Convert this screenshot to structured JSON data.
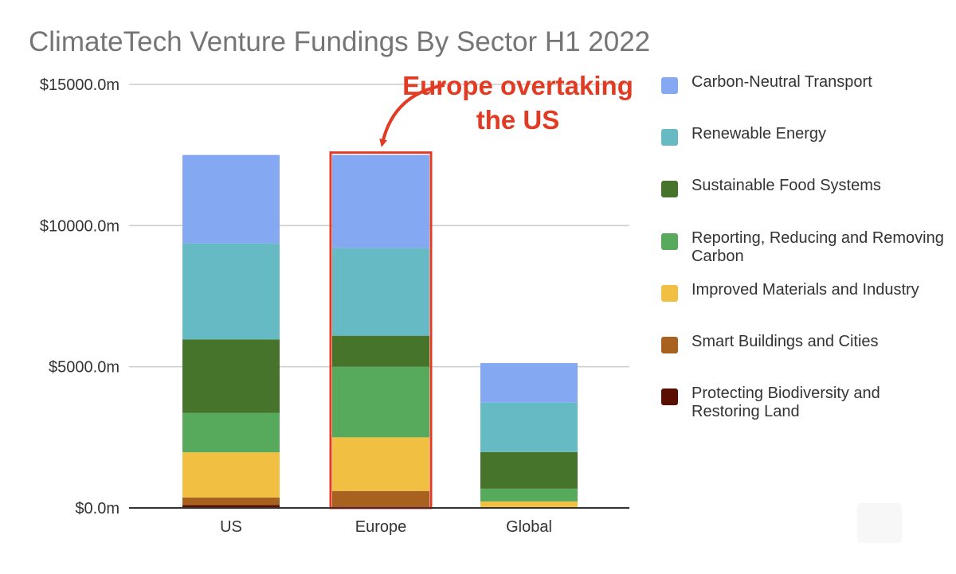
{
  "chart_data": {
    "type": "bar",
    "stacked": true,
    "title": "ClimateTech Venture Fundings By Sector H1 2022",
    "xlabel": "",
    "ylabel": "",
    "categories": [
      "US",
      "Europe",
      "Global"
    ],
    "ylim": [
      0,
      15000
    ],
    "yticks": [
      0,
      5000,
      10000,
      15000
    ],
    "ytick_labels": [
      "$0.0m",
      "$5000.0m",
      "$10000.0m",
      "$15000.0m"
    ],
    "grid": true,
    "legend_position": "right",
    "series": [
      {
        "name": "Protecting Biodiversity and Restoring Land",
        "color": "#5b0f00",
        "values": [
          100,
          20,
          0
        ]
      },
      {
        "name": "Smart Buildings and Cities",
        "color": "#a8611f",
        "values": [
          270,
          580,
          30
        ]
      },
      {
        "name": "Improved Materials and Industry",
        "color": "#f1c043",
        "values": [
          1600,
          1900,
          200
        ]
      },
      {
        "name": "Reporting, Reducing and Removing Carbon",
        "color": "#57a95c",
        "values": [
          1400,
          2500,
          450
        ]
      },
      {
        "name": "Sustainable Food Systems",
        "color": "#46742b",
        "values": [
          2600,
          1100,
          1300
        ]
      },
      {
        "name": "Renewable Energy",
        "color": "#65bac4",
        "values": [
          3400,
          3100,
          1750
        ]
      },
      {
        "name": "Carbon-Neutral Transport",
        "color": "#84a9f2",
        "values": [
          3130,
          3300,
          1400
        ]
      }
    ],
    "legend": [
      {
        "label": "Carbon-Neutral Transport",
        "color": "#84a9f2"
      },
      {
        "label": "Renewable Energy",
        "color": "#65bac4"
      },
      {
        "label": "Sustainable Food Systems",
        "color": "#46742b"
      },
      {
        "label": "Reporting, Reducing and Removing Carbon",
        "color": "#57a95c"
      },
      {
        "label": "Improved Materials and Industry",
        "color": "#f1c043"
      },
      {
        "label": "Smart Buildings and Cities",
        "color": "#a8611f"
      },
      {
        "label": "Protecting Biodiversity and Restoring Land",
        "color": "#5b0f00"
      }
    ],
    "annotations": [
      {
        "text": "Europe overtaking the US",
        "target_category": "Europe",
        "color": "#e23b24"
      }
    ]
  }
}
